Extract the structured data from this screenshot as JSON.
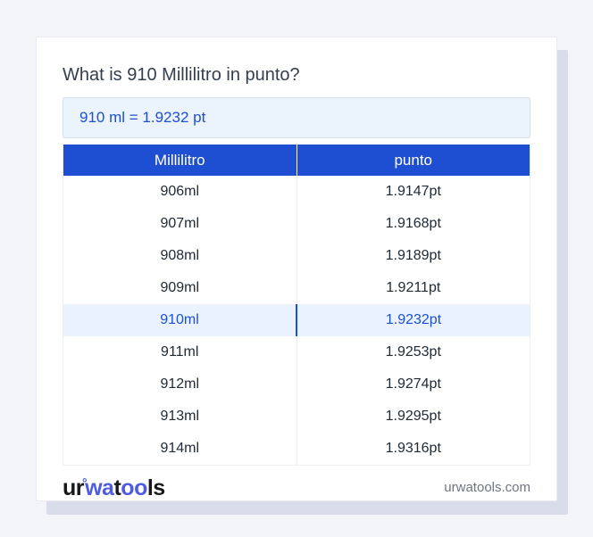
{
  "title": "What is 910 Millilitro in punto?",
  "result_text": "910 ml = 1.9232 pt",
  "table": {
    "headers": [
      "Millilitro",
      "punto"
    ],
    "rows": [
      [
        "906ml",
        "1.9147pt"
      ],
      [
        "907ml",
        "1.9168pt"
      ],
      [
        "908ml",
        "1.9189pt"
      ],
      [
        "909ml",
        "1.9211pt"
      ],
      [
        "910ml",
        "1.9232pt"
      ],
      [
        "911ml",
        "1.9253pt"
      ],
      [
        "912ml",
        "1.9274pt"
      ],
      [
        "913ml",
        "1.9295pt"
      ],
      [
        "914ml",
        "1.9316pt"
      ]
    ],
    "highlighted_row_value": "910ml"
  },
  "footer": {
    "logo": {
      "seg1": "ur",
      "ring": "°",
      "seg2": "wa",
      "seg3": "t",
      "seg4": "oo",
      "seg5": "ls"
    },
    "website": "urwatools.com"
  },
  "colors": {
    "accent_blue": "#1e4fd2",
    "highlight_row_bg": "#eaf3fd",
    "result_box_bg": "#ebf3fc",
    "result_box_border": "#d5e2f3",
    "page_bg": "#f3f5f9",
    "card_bg": "#ffffff",
    "card_shadow": "#d9dde9",
    "body_text": "#212b36",
    "title_text": "#353e4f",
    "site_text": "#6e7581",
    "logo_blue": "#4f5be0",
    "logo_black": "#17181c"
  }
}
